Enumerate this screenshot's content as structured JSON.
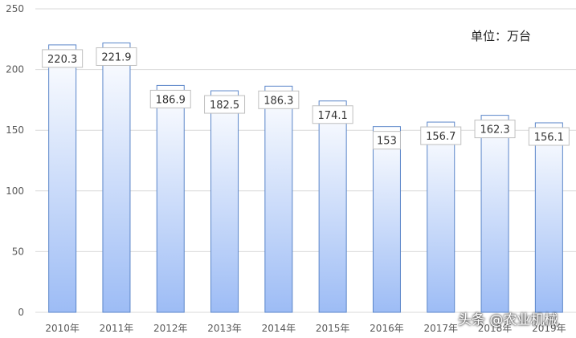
{
  "chart_data": {
    "type": "bar",
    "categories": [
      "2010年",
      "2011年",
      "2012年",
      "2013年",
      "2014年",
      "2015年",
      "2016年",
      "2017年",
      "2018年",
      "2019年"
    ],
    "values": [
      220.3,
      221.9,
      186.9,
      182.5,
      186.3,
      174.1,
      153,
      156.7,
      162.3,
      156.1
    ],
    "data_labels": [
      "220.3",
      "221.9",
      "186.9",
      "182.5",
      "186.3",
      "174.1",
      "153",
      "156.7",
      "162.3",
      "156.1"
    ],
    "yticks": [
      0,
      50,
      100,
      150,
      200,
      250
    ],
    "ylim": [
      0,
      250
    ],
    "grid": true,
    "unit_note": "单位：万台",
    "colors": {
      "bar_top": "#ffffff",
      "bar_bottom": "#9dbcf5",
      "bar_edge": "#5b86c9",
      "grid": "#d9d9d9"
    }
  },
  "watermark": "头条 @农业机械"
}
